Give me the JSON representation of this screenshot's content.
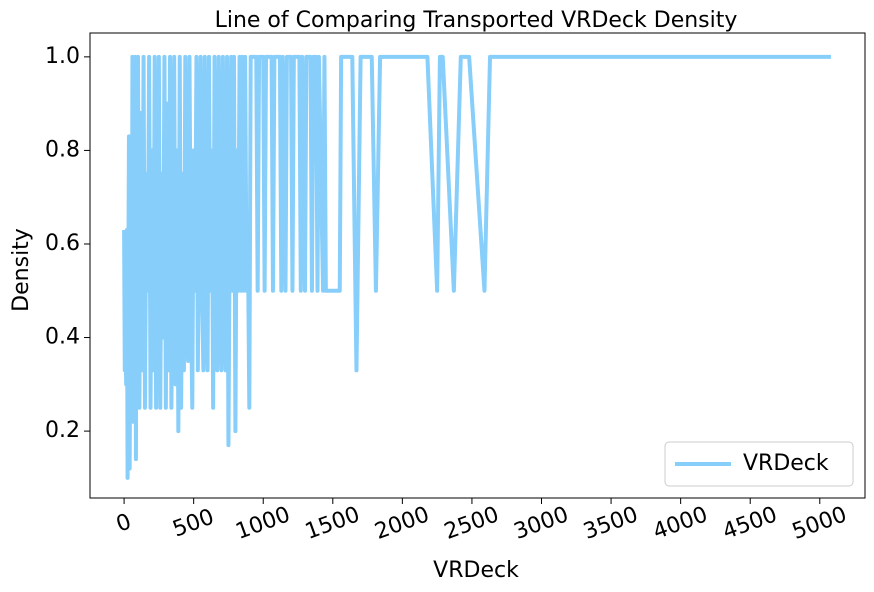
{
  "chart_data": {
    "type": "line",
    "title": "Line of Comparing Transported VRDeck Density",
    "x_label": "VRDeck",
    "y_label": "Density",
    "x": [
      0,
      5,
      10,
      15,
      20,
      25,
      30,
      35,
      40,
      50,
      55,
      60,
      65,
      70,
      75,
      80,
      85,
      90,
      100,
      110,
      120,
      130,
      140,
      150,
      160,
      170,
      180,
      190,
      200,
      210,
      220,
      230,
      240,
      250,
      260,
      270,
      280,
      290,
      300,
      310,
      320,
      330,
      340,
      350,
      360,
      370,
      380,
      390,
      400,
      410,
      420,
      430,
      440,
      450,
      460,
      470,
      480,
      490,
      500,
      510,
      520,
      530,
      540,
      550,
      560,
      570,
      580,
      590,
      600,
      610,
      620,
      630,
      640,
      650,
      660,
      670,
      680,
      690,
      700,
      710,
      720,
      730,
      740,
      750,
      760,
      770,
      780,
      790,
      800,
      810,
      820,
      830,
      840,
      850,
      860,
      870,
      880,
      890,
      900,
      910,
      950,
      960,
      970,
      1000,
      1010,
      1020,
      1060,
      1070,
      1080,
      1120,
      1130,
      1140,
      1160,
      1170,
      1200,
      1210,
      1220,
      1260,
      1270,
      1280,
      1300,
      1310,
      1340,
      1350,
      1360,
      1380,
      1390,
      1400,
      1430,
      1440,
      1450,
      1550,
      1560,
      1640,
      1670,
      1700,
      1780,
      1810,
      1840,
      2180,
      2250,
      2270,
      2290,
      2370,
      2420,
      2480,
      2590,
      2630,
      5080
    ],
    "series": [
      {
        "name": "VRDeck",
        "color": "#87cefa",
        "values": [
          0.63,
          0.33,
          0.42,
          0.3,
          0.63,
          0.1,
          0.5,
          0.83,
          0.12,
          0.75,
          0.25,
          1.0,
          0.22,
          0.8,
          0.33,
          1.0,
          0.14,
          0.67,
          1.0,
          0.25,
          0.88,
          0.33,
          1.0,
          0.25,
          0.75,
          0.5,
          1.0,
          0.25,
          0.8,
          0.33,
          1.0,
          0.25,
          0.67,
          1.0,
          0.25,
          0.75,
          0.4,
          1.0,
          0.25,
          0.9,
          0.33,
          1.0,
          0.25,
          0.67,
          1.0,
          0.3,
          0.8,
          0.2,
          1.0,
          0.25,
          0.75,
          0.33,
          1.0,
          0.5,
          0.35,
          1.0,
          0.5,
          0.25,
          0.8,
          0.5,
          1.0,
          0.33,
          0.67,
          1.0,
          0.5,
          0.33,
          1.0,
          0.5,
          0.33,
          1.0,
          0.5,
          0.8,
          0.25,
          1.0,
          0.5,
          0.33,
          1.0,
          0.5,
          0.33,
          1.0,
          0.5,
          0.33,
          1.0,
          0.17,
          0.67,
          1.0,
          0.5,
          1.0,
          0.2,
          0.8,
          0.5,
          1.0,
          0.5,
          1.0,
          0.5,
          1.0,
          0.5,
          0.6,
          0.25,
          1.0,
          1.0,
          0.5,
          1.0,
          1.0,
          0.5,
          1.0,
          1.0,
          0.5,
          1.0,
          1.0,
          0.5,
          1.0,
          0.5,
          1.0,
          1.0,
          0.5,
          1.0,
          1.0,
          0.5,
          1.0,
          0.5,
          1.0,
          1.0,
          0.5,
          1.0,
          1.0,
          0.5,
          1.0,
          0.5,
          1.0,
          0.5,
          0.5,
          1.0,
          1.0,
          0.33,
          1.0,
          1.0,
          0.5,
          1.0,
          1.0,
          0.5,
          1.0,
          1.0,
          0.5,
          1.0,
          1.0,
          0.5,
          1.0,
          1.0
        ]
      }
    ],
    "xlim": [
      -245,
      5325
    ],
    "ylim": [
      0.057,
      1.051
    ],
    "xticks": [
      0,
      500,
      1000,
      1500,
      2000,
      2500,
      3000,
      3500,
      4000,
      4500,
      5000
    ],
    "yticks": [
      0.2,
      0.4,
      0.6,
      0.8,
      {
        "value": 1,
        "label": "1.0"
      }
    ],
    "legend": "lower right"
  }
}
